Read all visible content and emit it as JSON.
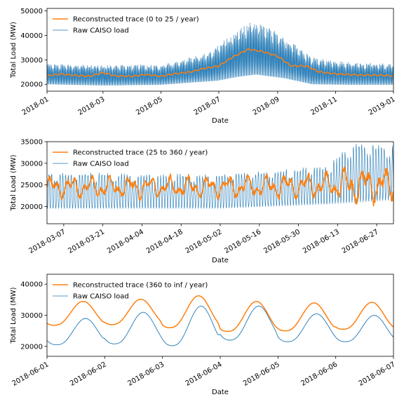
{
  "chart_data": [
    {
      "type": "line",
      "xlabel": "Date",
      "ylabel": "Total Load (MW)",
      "xlim": [
        "2018-01-01",
        "2019-01-01"
      ],
      "ylim": [
        17200,
        51000
      ],
      "xticks": [
        "2018-01",
        "2018-03",
        "2018-05",
        "2018-07",
        "2018-09",
        "2018-11",
        "2019-01"
      ],
      "yticks": [
        20000,
        30000,
        40000,
        50000
      ],
      "legend": "top-left",
      "series": [
        {
          "name": "Reconstructed trace (0 to 25 / year)",
          "color": "#ff7f0e",
          "points": [
            [
              "2018-01-01",
              23500
            ],
            [
              "2018-01-15",
              24200
            ],
            [
              "2018-02-01",
              23600
            ],
            [
              "2018-02-15",
              23300
            ],
            [
              "2018-03-01",
              24800
            ],
            [
              "2018-03-15",
              23400
            ],
            [
              "2018-04-01",
              23300
            ],
            [
              "2018-04-15",
              24000
            ],
            [
              "2018-05-01",
              23300
            ],
            [
              "2018-05-15",
              24300
            ],
            [
              "2018-06-01",
              25000
            ],
            [
              "2018-06-15",
              26500
            ],
            [
              "2018-07-01",
              27500
            ],
            [
              "2018-07-15",
              31000
            ],
            [
              "2018-08-01",
              34300
            ],
            [
              "2018-08-15",
              33500
            ],
            [
              "2018-09-01",
              31500
            ],
            [
              "2018-09-15",
              27500
            ],
            [
              "2018-10-01",
              27500
            ],
            [
              "2018-10-15",
              25000
            ],
            [
              "2018-11-01",
              24300
            ],
            [
              "2018-11-15",
              24000
            ],
            [
              "2018-12-01",
              23700
            ],
            [
              "2018-12-15",
              23800
            ],
            [
              "2019-01-01",
              23500
            ]
          ]
        },
        {
          "name": "Raw CAISO load",
          "color": "#1f77b4",
          "daily_min": [
            [
              1,
              20000
            ],
            [
              60,
              19500
            ],
            [
              120,
              19800
            ],
            [
              180,
              21500
            ],
            [
              200,
              23000
            ],
            [
              220,
              24000
            ],
            [
              250,
              22500
            ],
            [
              280,
              20000
            ],
            [
              320,
              19800
            ],
            [
              365,
              19800
            ]
          ],
          "daily_max": [
            [
              1,
              28500
            ],
            [
              60,
              28000
            ],
            [
              120,
              28000
            ],
            [
              170,
              33000
            ],
            [
              200,
              42000
            ],
            [
              215,
              46000
            ],
            [
              235,
              43000
            ],
            [
              255,
              38000
            ],
            [
              280,
              31000
            ],
            [
              320,
              29000
            ],
            [
              365,
              28500
            ]
          ]
        }
      ]
    },
    {
      "type": "line",
      "xlabel": "Date",
      "ylabel": "Total Load (MW)",
      "xlim": [
        "2018-03-01",
        "2018-07-03"
      ],
      "ylim": [
        16000,
        35000
      ],
      "xticks": [
        "2018-03-07",
        "2018-03-21",
        "2018-04-04",
        "2018-04-18",
        "2018-05-02",
        "2018-05-16",
        "2018-05-30",
        "2018-06-13",
        "2018-06-27"
      ],
      "yticks": [
        20000,
        25000,
        30000,
        35000
      ],
      "legend": "top-left",
      "series": [
        {
          "name": "Reconstructed trace (25 to 360 / year)",
          "color": "#ff7f0e",
          "daily_mean": [
            [
              0,
              24500
            ],
            [
              30,
              24500
            ],
            [
              60,
              24500
            ],
            [
              90,
              24800
            ],
            [
              115,
              25000
            ],
            [
              124,
              25000
            ]
          ],
          "daily_swing": [
            [
              0,
              3000
            ],
            [
              60,
              3000
            ],
            [
              100,
              3500
            ],
            [
              110,
              5500
            ],
            [
              124,
              4500
            ]
          ]
        },
        {
          "name": "Raw CAISO load",
          "color": "#1f77b4",
          "daily_min": [
            [
              0,
              19500
            ],
            [
              60,
              19500
            ],
            [
              100,
              20500
            ],
            [
              124,
              21500
            ]
          ],
          "daily_max": [
            [
              0,
              28000
            ],
            [
              60,
              27500
            ],
            [
              100,
              29500
            ],
            [
              110,
              35000
            ],
            [
              124,
              34000
            ]
          ]
        }
      ]
    },
    {
      "type": "line",
      "xlabel": "Date",
      "ylabel": "Total Load (MW)",
      "xlim": [
        "2018-06-01",
        "2018-06-07"
      ],
      "ylim": [
        16800,
        43200
      ],
      "xticks": [
        "2018-06-01",
        "2018-06-02",
        "2018-06-03",
        "2018-06-04",
        "2018-06-05",
        "2018-06-06",
        "2018-06-07"
      ],
      "yticks": [
        20000,
        30000,
        40000
      ],
      "legend": "top-left",
      "series": [
        {
          "name": "Reconstructed trace (360 to inf / year)",
          "color": "#ff7f0e",
          "daily_peaks": [
            34500,
            35200,
            36300,
            34500,
            34000,
            34200
          ],
          "daily_troughs": [
            26800,
            27000,
            26000,
            24800,
            25000,
            25500
          ]
        },
        {
          "name": "Raw CAISO load",
          "color": "#1f77b4",
          "daily_peaks": [
            29000,
            31000,
            33000,
            33000,
            30500,
            30000
          ],
          "daily_troughs": [
            20500,
            20800,
            20200,
            22000,
            21500,
            21500
          ]
        }
      ]
    }
  ]
}
